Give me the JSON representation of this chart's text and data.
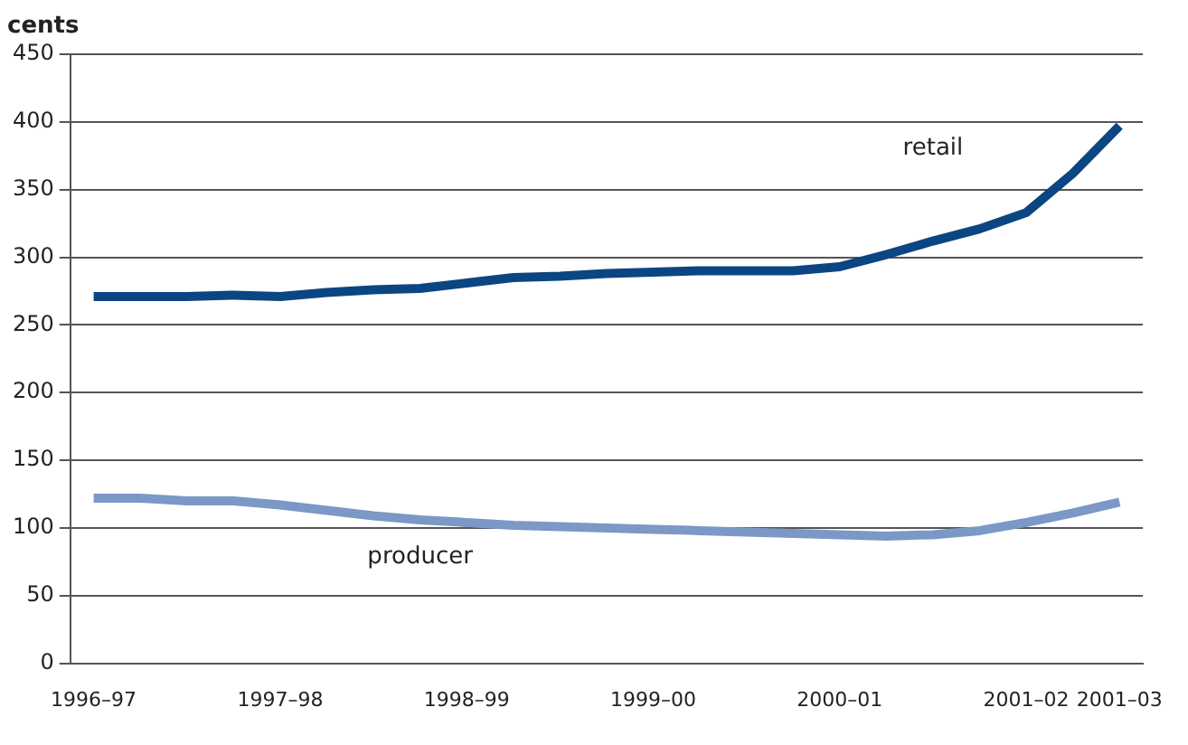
{
  "chart_data": {
    "type": "line",
    "ylabel": "cents",
    "categories": [
      "1996–97",
      null,
      null,
      null,
      "1997–98",
      null,
      null,
      null,
      "1998–99",
      null,
      null,
      null,
      "1999–00",
      null,
      null,
      null,
      "2000–01",
      null,
      null,
      null,
      "2001–02",
      null,
      "2001–03"
    ],
    "series": [
      {
        "name": "retail",
        "color": "#0b4682",
        "values": [
          271,
          271,
          271,
          272,
          271,
          274,
          276,
          277,
          281,
          285,
          286,
          288,
          289,
          290,
          290,
          290,
          293,
          302,
          312,
          321,
          333,
          362,
          397
        ]
      },
      {
        "name": "producer",
        "color": "#7b98c6",
        "values": [
          122,
          122,
          120,
          120,
          117,
          113,
          109,
          106,
          104,
          102,
          101,
          100,
          99,
          98,
          97,
          96,
          95,
          94,
          95,
          98,
          104,
          111,
          119
        ]
      }
    ],
    "ylim": [
      0,
      450
    ],
    "yticks": [
      0,
      50,
      100,
      150,
      200,
      250,
      300,
      350,
      400,
      450
    ],
    "grid": "y",
    "legend": false,
    "marker": "none",
    "line_style": "solid"
  }
}
